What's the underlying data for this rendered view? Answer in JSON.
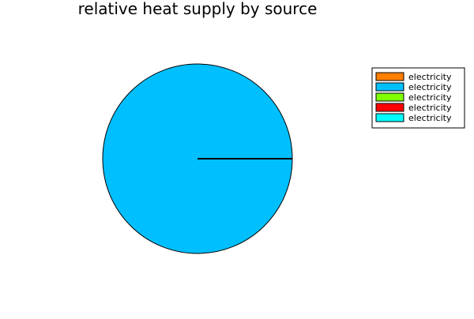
{
  "chart_data": {
    "type": "pie",
    "title": "relative heat supply by source",
    "legend_position": "top-right",
    "series": [
      {
        "name": "electricity",
        "value": 0,
        "color": "#ff7f00"
      },
      {
        "name": "electricity",
        "value": 1,
        "color": "#00bfff"
      },
      {
        "name": "electricity",
        "value": 0,
        "color": "#7fff00"
      },
      {
        "name": "electricity",
        "value": 0,
        "color": "#ff0000"
      },
      {
        "name": "electricity",
        "value": 0,
        "color": "#00ffff"
      }
    ]
  }
}
